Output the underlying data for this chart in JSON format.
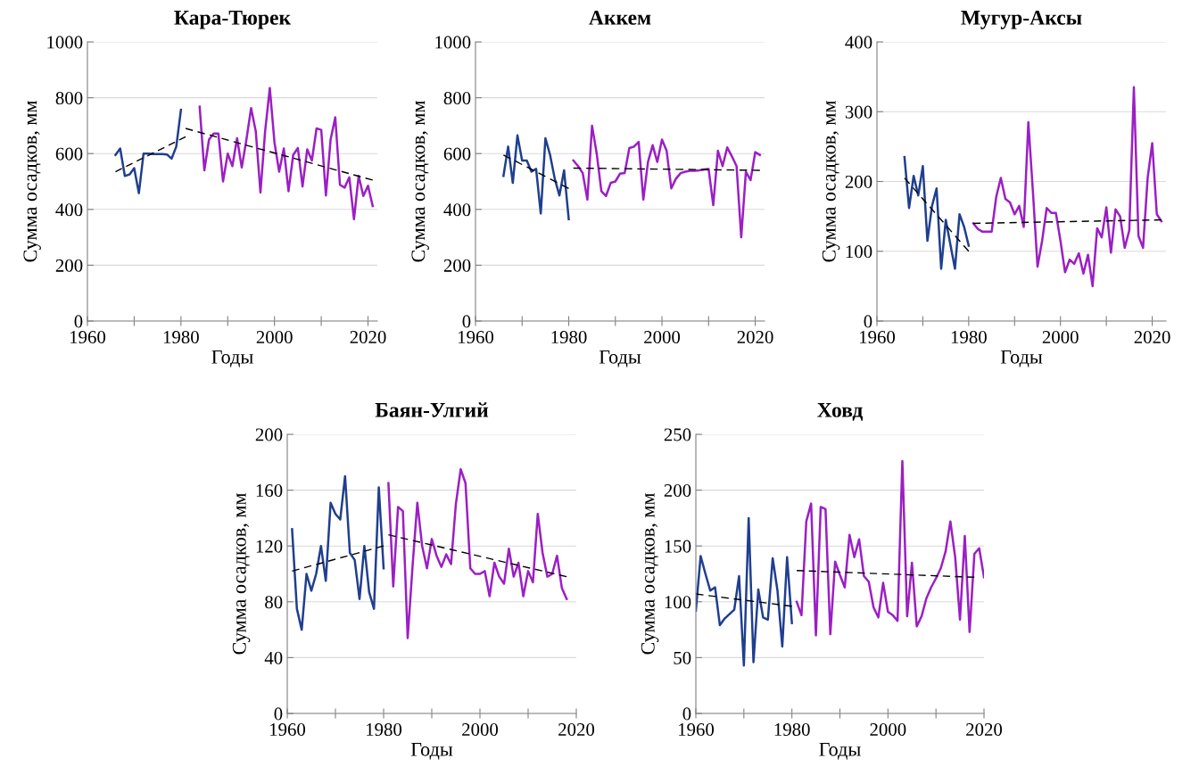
{
  "chart_data": [
    {
      "type": "line",
      "title": "Кара-Тюрек",
      "xlabel": "Годы",
      "ylabel": "Сумма осадков, мм",
      "xlim": [
        1960,
        2022
      ],
      "ylim": [
        0,
        1000
      ],
      "xticks": [
        1960,
        {
          "value": 1970,
          "label": null
        },
        1980,
        {
          "value": 1990,
          "label": null
        },
        2000,
        {
          "value": 2010,
          "label": null
        },
        2020
      ],
      "yticks": [
        0,
        200,
        400,
        600,
        800,
        1000
      ],
      "grid": "y",
      "series": [
        {
          "color": "#1f3f8f",
          "line_style": "solid",
          "x": [
            1966,
            1967,
            1968,
            1969,
            1970,
            1971,
            1972,
            1973,
            1974,
            1975,
            1976,
            1977,
            1978,
            1979,
            1980
          ],
          "values": [
            595,
            618,
            520,
            525,
            548,
            458,
            600,
            600,
            598,
            598,
            598,
            597,
            582,
            625,
            757
          ]
        },
        {
          "color": "#9b1fc4",
          "line_style": "solid",
          "x": [
            1984,
            1985,
            1986,
            1987,
            1988,
            1989,
            1990,
            1991,
            1992,
            1993,
            1994,
            1995,
            1996,
            1997,
            1998,
            1999,
            2000,
            2001,
            2002,
            2003,
            2004,
            2005,
            2006,
            2007,
            2008,
            2009,
            2010,
            2011,
            2012,
            2013,
            2014,
            2015,
            2016,
            2017,
            2018,
            2019,
            2020,
            2021
          ],
          "values": [
            768,
            540,
            650,
            672,
            672,
            500,
            600,
            555,
            655,
            550,
            650,
            763,
            680,
            460,
            680,
            835,
            640,
            535,
            618,
            465,
            595,
            620,
            482,
            615,
            575,
            690,
            685,
            450,
            650,
            730,
            488,
            478,
            515,
            365,
            520,
            448,
            485,
            412
          ]
        },
        {
          "color": "#000000",
          "line_style": "dashed",
          "x": [
            1966,
            1981
          ],
          "values": [
            535,
            660
          ]
        },
        {
          "color": "#000000",
          "line_style": "dashed",
          "x": [
            1981,
            2021
          ],
          "values": [
            690,
            505
          ]
        }
      ]
    },
    {
      "type": "line",
      "title": "Аккем",
      "xlabel": "Годы",
      "ylabel": "Сумма осадков, мм",
      "xlim": [
        1960,
        2022
      ],
      "ylim": [
        0,
        1000
      ],
      "xticks": [
        1960,
        {
          "value": 1970,
          "label": null
        },
        1980,
        {
          "value": 1990,
          "label": null
        },
        2000,
        {
          "value": 2010,
          "label": null
        },
        2020
      ],
      "yticks": [
        0,
        200,
        400,
        600,
        800,
        1000
      ],
      "grid": "y",
      "series": [
        {
          "color": "#1f3f8f",
          "line_style": "solid",
          "x": [
            1966,
            1967,
            1968,
            1969,
            1970,
            1971,
            1972,
            1973,
            1974,
            1975,
            1976,
            1977,
            1978,
            1979,
            1980
          ],
          "values": [
            520,
            625,
            495,
            665,
            575,
            575,
            535,
            545,
            385,
            655,
            595,
            510,
            450,
            540,
            365
          ]
        },
        {
          "color": "#9b1fc4",
          "line_style": "solid",
          "x": [
            1981,
            1982,
            1983,
            1984,
            1985,
            1986,
            1987,
            1988,
            1989,
            1990,
            1991,
            1992,
            1993,
            1994,
            1995,
            1996,
            1997,
            1998,
            1999,
            2000,
            2001,
            2002,
            2003,
            2004,
            2005,
            2006,
            2007,
            2008,
            2009,
            2010,
            2011,
            2012,
            2013,
            2014,
            2015,
            2016,
            2017,
            2018,
            2019,
            2020,
            2021
          ],
          "values": [
            575,
            555,
            530,
            435,
            700,
            600,
            465,
            448,
            495,
            500,
            528,
            530,
            620,
            625,
            642,
            435,
            570,
            630,
            570,
            650,
            610,
            475,
            510,
            530,
            535,
            538,
            538,
            540,
            543,
            545,
            415,
            610,
            555,
            622,
            590,
            555,
            300,
            535,
            505,
            605,
            595
          ]
        },
        {
          "color": "#000000",
          "line_style": "dashed",
          "x": [
            1966,
            1980
          ],
          "values": [
            595,
            475
          ]
        },
        {
          "color": "#000000",
          "line_style": "dashed",
          "x": [
            1981,
            2021
          ],
          "values": [
            548,
            540
          ]
        }
      ]
    },
    {
      "type": "line",
      "title": "Мугур-Аксы",
      "xlabel": "Годы",
      "ylabel": "Сумма осадков, мм",
      "xlim": [
        1960,
        2023
      ],
      "ylim": [
        0,
        400
      ],
      "xticks": [
        1960,
        {
          "value": 1970,
          "label": null
        },
        1980,
        {
          "value": 1990,
          "label": null
        },
        2000,
        {
          "value": 2010,
          "label": null
        },
        2020
      ],
      "yticks": [
        0,
        100,
        200,
        300,
        400
      ],
      "grid": "y",
      "series": [
        {
          "color": "#1f3f8f",
          "line_style": "solid",
          "x": [
            1966,
            1967,
            1968,
            1969,
            1970,
            1971,
            1972,
            1973,
            1974,
            1975,
            1976,
            1977,
            1978,
            1979,
            1980
          ],
          "values": [
            235,
            162,
            208,
            180,
            222,
            115,
            165,
            190,
            75,
            145,
            110,
            75,
            153,
            135,
            108
          ]
        },
        {
          "color": "#9b1fc4",
          "line_style": "solid",
          "x": [
            1981,
            1982,
            1983,
            1984,
            1985,
            1986,
            1987,
            1988,
            1989,
            1990,
            1991,
            1992,
            1993,
            1994,
            1995,
            1996,
            1997,
            1998,
            1999,
            2000,
            2001,
            2002,
            2003,
            2004,
            2005,
            2006,
            2007,
            2008,
            2009,
            2010,
            2011,
            2012,
            2013,
            2014,
            2015,
            2016,
            2017,
            2018,
            2019,
            2020,
            2021,
            2022
          ],
          "values": [
            140,
            132,
            128,
            128,
            128,
            178,
            205,
            175,
            170,
            153,
            165,
            135,
            285,
            185,
            78,
            115,
            162,
            155,
            155,
            115,
            70,
            88,
            82,
            97,
            68,
            95,
            50,
            133,
            120,
            163,
            98,
            160,
            150,
            105,
            130,
            335,
            122,
            105,
            205,
            255,
            153,
            143
          ]
        },
        {
          "color": "#000000",
          "line_style": "dashed",
          "x": [
            1966,
            1980
          ],
          "values": [
            205,
            100
          ]
        },
        {
          "color": "#000000",
          "line_style": "dashed",
          "x": [
            1981,
            2022
          ],
          "values": [
            140,
            145
          ]
        }
      ]
    },
    {
      "type": "line",
      "title": "Баян-Улгий",
      "xlabel": "Годы",
      "ylabel": "Сумма осадков, мм",
      "xlim": [
        1960,
        2020
      ],
      "ylim": [
        0,
        200
      ],
      "xticks": [
        1960,
        {
          "value": 1970,
          "label": null
        },
        1980,
        {
          "value": 1990,
          "label": null
        },
        2000,
        {
          "value": 2010,
          "label": null
        },
        2020
      ],
      "yticks": [
        0,
        40,
        80,
        120,
        160,
        200
      ],
      "grid": "y",
      "series": [
        {
          "color": "#1f3f8f",
          "line_style": "solid",
          "x": [
            1961,
            1962,
            1963,
            1964,
            1965,
            1966,
            1967,
            1968,
            1969,
            1970,
            1971,
            1972,
            1973,
            1974,
            1975,
            1976,
            1977,
            1978,
            1979,
            1980
          ],
          "values": [
            132,
            75,
            60,
            100,
            88,
            100,
            120,
            95,
            151,
            143,
            139,
            170,
            115,
            110,
            82,
            120,
            87,
            75,
            162,
            104
          ]
        },
        {
          "color": "#9b1fc4",
          "line_style": "solid",
          "x": [
            1981,
            1982,
            1983,
            1984,
            1985,
            1986,
            1987,
            1988,
            1989,
            1990,
            1991,
            1992,
            1993,
            1994,
            1995,
            1996,
            1997,
            1998,
            1999,
            2000,
            2001,
            2002,
            2003,
            2004,
            2005,
            2006,
            2007,
            2008,
            2009,
            2010,
            2011,
            2012,
            2013,
            2014,
            2015,
            2016,
            2017,
            2018
          ],
          "values": [
            165,
            91,
            148,
            145,
            54,
            105,
            151,
            120,
            104,
            125,
            113,
            105,
            114,
            107,
            150,
            175,
            165,
            104,
            100,
            100,
            102,
            84,
            108,
            98,
            93,
            118,
            98,
            108,
            84,
            102,
            94,
            143,
            115,
            98,
            100,
            113,
            90,
            82
          ]
        },
        {
          "color": "#000000",
          "line_style": "dashed",
          "x": [
            1961,
            1980
          ],
          "values": [
            102,
            120
          ]
        },
        {
          "color": "#000000",
          "line_style": "dashed",
          "x": [
            1981,
            2018
          ],
          "values": [
            128,
            98
          ]
        }
      ]
    },
    {
      "type": "line",
      "title": "Ховд",
      "xlabel": "Годы",
      "ylabel": "Сумма осадков, мм",
      "xlim": [
        1960,
        2020
      ],
      "ylim": [
        0,
        250
      ],
      "xticks": [
        1960,
        {
          "value": 1970,
          "label": null
        },
        1980,
        {
          "value": 1990,
          "label": null
        },
        2000,
        {
          "value": 2010,
          "label": null
        },
        2020
      ],
      "yticks": [
        0,
        50,
        100,
        150,
        200,
        250
      ],
      "grid": "y",
      "series": [
        {
          "color": "#1f3f8f",
          "line_style": "solid",
          "x": [
            1960,
            1961,
            1962,
            1963,
            1964,
            1965,
            1966,
            1967,
            1968,
            1969,
            1970,
            1971,
            1972,
            1973,
            1974,
            1975,
            1976,
            1977,
            1978,
            1979,
            1980
          ],
          "values": [
            92,
            141,
            125,
            110,
            113,
            79,
            85,
            89,
            93,
            123,
            43,
            175,
            46,
            111,
            86,
            84,
            139,
            110,
            60,
            140,
            81
          ]
        },
        {
          "color": "#9b1fc4",
          "line_style": "solid",
          "x": [
            1981,
            1982,
            1983,
            1984,
            1985,
            1986,
            1987,
            1988,
            1989,
            1990,
            1991,
            1992,
            1993,
            1994,
            1995,
            1996,
            1997,
            1998,
            1999,
            2000,
            2001,
            2002,
            2003,
            2004,
            2005,
            2006,
            2007,
            2008,
            2009,
            2010,
            2011,
            2012,
            2013,
            2014,
            2015,
            2016,
            2017,
            2018,
            2019,
            2020
          ],
          "values": [
            100,
            88,
            172,
            188,
            70,
            185,
            183,
            71,
            136,
            124,
            113,
            160,
            140,
            156,
            123,
            118,
            95,
            86,
            117,
            91,
            88,
            83,
            226,
            87,
            135,
            78,
            87,
            103,
            113,
            121,
            130,
            145,
            172,
            140,
            84,
            159,
            73,
            143,
            148,
            122
          ]
        },
        {
          "color": "#000000",
          "line_style": "dashed",
          "x": [
            1960,
            1980
          ],
          "values": [
            107,
            96
          ]
        },
        {
          "color": "#000000",
          "line_style": "dashed",
          "x": [
            1981,
            2018
          ],
          "values": [
            128,
            122
          ]
        }
      ]
    }
  ]
}
